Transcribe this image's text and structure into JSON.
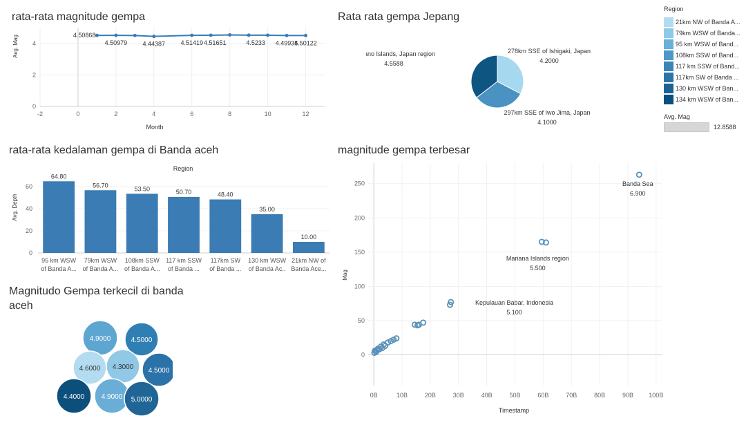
{
  "panels": {
    "line_title": "rata-rata magnitude gempa",
    "pie_title": "Rata rata gempa Jepang",
    "bar_title": "rata-rata kedalaman  gempa  di Banda aceh",
    "bubble_title_l1": "Magnitudo Gempa  terkecil di banda",
    "bubble_title_l2": "aceh",
    "scatter_title": "magnitude gempa terbesar"
  },
  "legend": {
    "title": "Region",
    "items": [
      {
        "label": "21km NW of Banda A...",
        "color": "#b4dcf0"
      },
      {
        "label": "79km WSW of Banda...",
        "color": "#8ccae8"
      },
      {
        "label": "95 km WSW of Band...",
        "color": "#67b0da"
      },
      {
        "label": "108km SSW of Band...",
        "color": "#4d98c9"
      },
      {
        "label": "117 km SSW of Band...",
        "color": "#3a84b8"
      },
      {
        "label": "117km SW of Banda ...",
        "color": "#2c74a7"
      },
      {
        "label": "130 km WSW of Ban...",
        "color": "#1d6293"
      },
      {
        "label": "134 km WSW of Ban...",
        "color": "#0b4f7e"
      }
    ],
    "size_title": "Avg. Mag",
    "size_value": "12.8588"
  },
  "chart_data": [
    {
      "type": "line",
      "title": "rata-rata magnitude gempa",
      "xlabel": "Month",
      "ylabel": "Avg. Mag",
      "xlim": [
        -2,
        13
      ],
      "ylim": [
        0,
        5
      ],
      "xticks": [
        "-2",
        "0",
        "2",
        "4",
        "6",
        "8",
        "10",
        "12"
      ],
      "yticks": [
        "0",
        "2",
        "4"
      ],
      "color": "#3a7cb3",
      "x": [
        1,
        2,
        3,
        4,
        6,
        7,
        8,
        9,
        10,
        11,
        12
      ],
      "y": [
        4.50868,
        4.50979,
        4.5,
        4.44387,
        4.51419,
        4.5165,
        4.54,
        4.5233,
        4.52,
        4.49935,
        4.50122
      ],
      "labels": [
        "4.50868",
        "4.50979",
        "4.44387",
        "4.51419",
        "4.51651",
        "4.5233",
        "4.49935",
        "4.50122"
      ]
    },
    {
      "type": "pie",
      "title": "Rata rata gempa Jepang",
      "slices": [
        {
          "name": "278km SSE of Ishigaki, Japan",
          "value": 4.2,
          "value_label": "4.2000",
          "color": "#a6d9f0"
        },
        {
          "name": "297km SSE of Iwo Jima, Japan",
          "value": 4.1,
          "value_label": "4.1000",
          "color": "#4a92c2"
        },
        {
          "name": "Volcano Islands, Japan region",
          "value": 4.5588,
          "value_label": "4.5588",
          "color": "#0f5582"
        }
      ]
    },
    {
      "type": "bar",
      "title": "rata-rata kedalaman  gempa  di Banda aceh",
      "header": "Region",
      "ylabel": "Avg. Depth",
      "ylim": [
        0,
        70
      ],
      "yticks": [
        "0",
        "20",
        "40",
        "60"
      ],
      "color": "#3a7cb3",
      "categories": [
        [
          "95 km WSW",
          "of Banda A..."
        ],
        [
          "79km WSW",
          "of Banda A..."
        ],
        [
          "108km SSW",
          "of Banda A..."
        ],
        [
          "117 km SSW",
          "of Banda ..."
        ],
        [
          "117km SW",
          "of Banda ..."
        ],
        [
          "130 km WSW",
          "of Banda Ac.."
        ],
        [
          "21km NW of",
          "Banda Ace..."
        ]
      ],
      "values": [
        64.8,
        56.7,
        53.5,
        50.7,
        48.4,
        35.0,
        10.0
      ],
      "value_labels": [
        "64.80",
        "56.70",
        "53.50",
        "50.70",
        "48.40",
        "35.00",
        "10.00"
      ]
    },
    {
      "type": "bubble",
      "title": "Magnitudo Gempa  terkecil di banda aceh",
      "bubbles": [
        {
          "label": "4.9000",
          "color": "#5ea6d2",
          "dark_text": false
        },
        {
          "label": "4.5000",
          "color": "#2f7fb5",
          "dark_text": false
        },
        {
          "label": "4.6000",
          "color": "#b3dcf1",
          "dark_text": true
        },
        {
          "label": "4.3000",
          "color": "#90c8e6",
          "dark_text": true
        },
        {
          "label": "4.5000",
          "color": "#2a72a8",
          "dark_text": false
        },
        {
          "label": "4.4000",
          "color": "#0c4f7c",
          "dark_text": false
        },
        {
          "label": "4.9000",
          "color": "#6aaed8",
          "dark_text": false
        },
        {
          "label": "5.0000",
          "color": "#1f6697",
          "dark_text": false
        }
      ]
    },
    {
      "type": "scatter",
      "title": "magnitude gempa terbesar",
      "xlabel": "Timestamp",
      "ylabel": "Mag",
      "xlim": [
        -2,
        102
      ],
      "ylim": [
        -45,
        280
      ],
      "xticks": [
        0,
        10,
        20,
        30,
        40,
        50,
        60,
        70,
        80,
        90,
        100
      ],
      "xtick_labels": [
        "0B",
        "10B",
        "20B",
        "30B",
        "40B",
        "50B",
        "60B",
        "70B",
        "80B",
        "90B",
        "100B"
      ],
      "yticks": [
        0,
        50,
        100,
        150,
        200,
        250
      ],
      "ytick_labels": [
        "0",
        "50",
        "100",
        "150",
        "200",
        "250"
      ],
      "color": "#5b91b8",
      "points": [
        [
          0.2,
          3
        ],
        [
          0.4,
          6
        ],
        [
          0.8,
          4
        ],
        [
          1.0,
          7
        ],
        [
          1.5,
          9
        ],
        [
          2,
          8
        ],
        [
          2.5,
          12
        ],
        [
          3,
          10
        ],
        [
          3.5,
          15
        ],
        [
          4,
          13
        ],
        [
          5,
          18
        ],
        [
          6,
          20
        ],
        [
          7,
          22
        ],
        [
          8,
          24
        ],
        [
          14.5,
          44
        ],
        [
          15.5,
          43
        ],
        [
          16,
          44
        ],
        [
          17.5,
          47
        ],
        [
          27,
          73
        ],
        [
          27.3,
          77
        ],
        [
          59.5,
          165
        ],
        [
          61,
          164
        ],
        [
          94,
          263
        ]
      ],
      "annotations": [
        {
          "name": "Banda Sea",
          "value": "6.900",
          "x": 94,
          "y": 263
        },
        {
          "name": "Mariana Islands region",
          "value": "5.500",
          "x": 60,
          "y": 165
        },
        {
          "name": "Kepulauan Babar, Indonesia",
          "value": "5.100",
          "x": 27,
          "y": 75
        }
      ]
    }
  ]
}
